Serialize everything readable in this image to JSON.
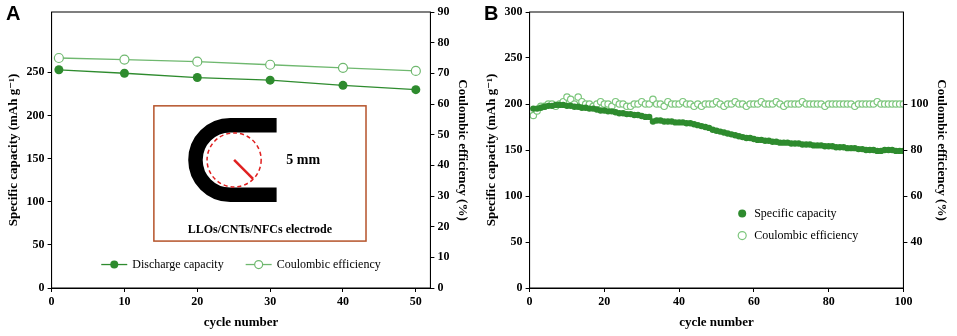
{
  "chart_data": [
    {
      "panel": "A",
      "type": "line",
      "x": [
        1,
        10,
        20,
        30,
        40,
        50
      ],
      "xlim": [
        0,
        52
      ],
      "xticks": [
        0,
        10,
        20,
        30,
        40,
        50
      ],
      "x_label": "cycle number",
      "y_label": "Specific capacity (mAh g⁻¹)",
      "ylim": [
        0,
        320
      ],
      "yticks": [
        0,
        50,
        100,
        150,
        200,
        250
      ],
      "y2_label": "Coulombic efficiency (%)",
      "y2lim": [
        0,
        90
      ],
      "y2ticks": [
        0,
        10,
        20,
        30,
        40,
        50,
        60,
        70,
        80,
        90
      ],
      "grid": false,
      "legend": "lower center",
      "series": [
        {
          "name": "Discharge capacity",
          "color": "#2e8b2e",
          "marker": "circle",
          "line_style": "solid",
          "values": [
            253,
            249,
            244,
            241,
            235,
            230
          ]
        },
        {
          "name": "Coulombic efficiency",
          "color": "#6fb86f",
          "marker": "open_circle",
          "line_style": "solid",
          "axis": "y2",
          "values": [
            75,
            74.5,
            73.8,
            72.8,
            71.8,
            70.8
          ]
        }
      ],
      "inset": {
        "label": "5 mm",
        "caption": "LLOs/CNTs/NFCs electrode"
      }
    },
    {
      "panel": "B",
      "type": "scatter",
      "x": [
        1,
        2,
        3,
        4,
        5,
        6,
        7,
        8,
        9,
        10,
        11,
        12,
        13,
        14,
        15,
        16,
        17,
        18,
        19,
        20,
        21,
        22,
        23,
        24,
        25,
        26,
        27,
        28,
        29,
        30,
        31,
        32,
        33,
        34,
        35,
        36,
        37,
        38,
        39,
        40,
        41,
        42,
        43,
        44,
        45,
        46,
        47,
        48,
        49,
        50,
        51,
        52,
        53,
        54,
        55,
        56,
        57,
        58,
        59,
        60,
        61,
        62,
        63,
        64,
        65,
        66,
        67,
        68,
        69,
        70,
        71,
        72,
        73,
        74,
        75,
        76,
        77,
        78,
        79,
        80,
        81,
        82,
        83,
        84,
        85,
        86,
        87,
        88,
        89,
        90,
        91,
        92,
        93,
        94,
        95,
        96,
        97,
        98,
        99,
        100
      ],
      "xlim": [
        0,
        100
      ],
      "xticks": [
        0,
        20,
        40,
        60,
        80,
        100
      ],
      "x_label": "cycle number",
      "y_label": "Specific capacity (mAh g⁻¹)",
      "ylim": [
        0,
        300
      ],
      "yticks": [
        0,
        50,
        100,
        150,
        200,
        250,
        300
      ],
      "y2_label": "Coulombic efficiency (%)",
      "y2lim": [
        20,
        140
      ],
      "y2ticks": [
        40,
        60,
        80,
        100
      ],
      "grid": false,
      "legend": "lower right",
      "series": [
        {
          "name": "Specific capacity",
          "color": "#2e8b2e",
          "marker": "circle",
          "line_style": "none",
          "values": [
            195,
            195,
            196,
            197,
            198,
            198,
            199,
            199,
            199,
            198,
            198,
            197,
            197,
            196,
            196,
            195,
            195,
            194,
            193,
            193,
            192,
            192,
            191,
            190,
            190,
            189,
            189,
            188,
            188,
            187,
            186,
            186,
            181,
            182,
            182,
            181,
            181,
            181,
            180,
            180,
            180,
            179,
            179,
            178,
            177,
            176,
            175,
            174,
            172,
            171,
            170,
            169,
            168,
            167,
            166,
            165,
            164,
            163,
            163,
            162,
            161,
            161,
            160,
            160,
            159,
            159,
            158,
            158,
            158,
            157,
            157,
            157,
            156,
            156,
            156,
            155,
            155,
            155,
            154,
            154,
            154,
            153,
            153,
            153,
            152,
            152,
            152,
            151,
            151,
            150,
            150,
            150,
            149,
            149,
            150,
            150,
            150,
            149,
            149,
            149
          ]
        },
        {
          "name": "Coulombic efficiency",
          "color": "#7cc67c",
          "marker": "open_circle",
          "line_style": "none",
          "axis": "y2",
          "values": [
            95,
            97,
            99,
            99,
            100,
            100,
            99,
            100,
            101,
            103,
            102,
            100,
            103,
            101,
            100,
            100,
            99,
            100,
            101,
            100,
            100,
            99,
            101,
            100,
            100,
            99,
            99,
            100,
            100,
            101,
            100,
            100,
            102,
            100,
            100,
            99,
            101,
            100,
            100,
            100,
            101,
            100,
            100,
            99,
            100,
            99,
            100,
            100,
            100,
            101,
            100,
            99,
            100,
            100,
            101,
            100,
            100,
            99,
            100,
            100,
            100,
            101,
            100,
            100,
            100,
            101,
            100,
            99,
            100,
            100,
            100,
            100,
            101,
            100,
            100,
            100,
            100,
            100,
            99,
            100,
            100,
            100,
            100,
            100,
            100,
            100,
            99,
            100,
            100,
            100,
            100,
            100,
            101,
            100,
            100,
            100,
            100,
            100,
            100,
            100
          ]
        }
      ]
    }
  ]
}
